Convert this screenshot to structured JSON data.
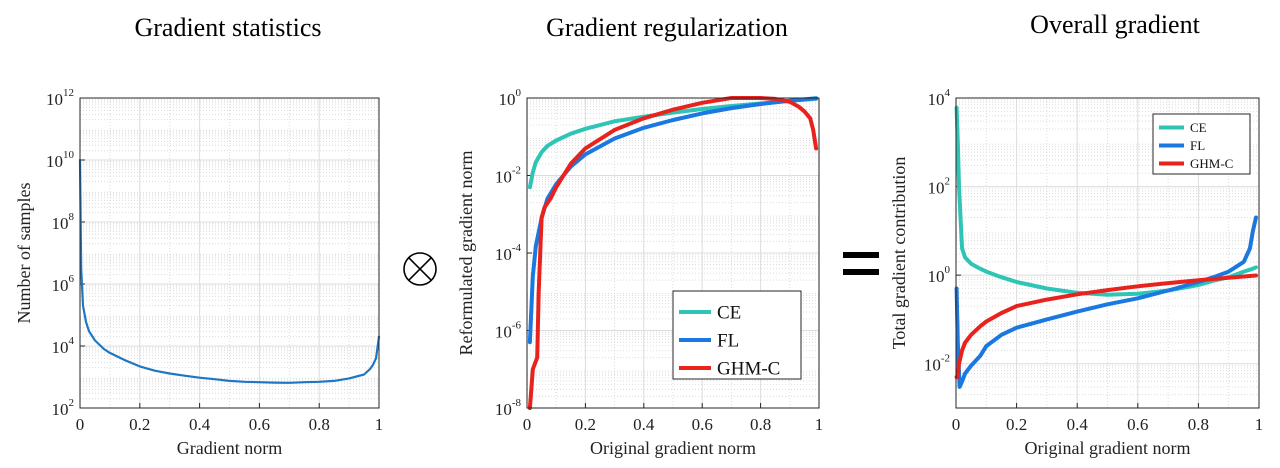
{
  "figure": {
    "titles": [
      "Gradient statistics",
      "Gradient regularization",
      "Overall gradient"
    ],
    "operator_otimes": "⊗",
    "operator_equals": "="
  },
  "chart_data": [
    {
      "type": "line",
      "title": "Gradient statistics",
      "xlabel": "Gradient norm",
      "ylabel": "Number of samples",
      "xlim": [
        0,
        1
      ],
      "ylim_log10": [
        2,
        12
      ],
      "yscale": "log",
      "grid": true,
      "xticks": [
        "0",
        "0.2",
        "0.4",
        "0.6",
        "0.8",
        "1"
      ],
      "yticks_base": "10",
      "yticks_exp": [
        "2",
        "4",
        "6",
        "8",
        "10",
        "12"
      ],
      "series": [
        {
          "color": "#1f77c4",
          "x": [
            0.0,
            0.004,
            0.01,
            0.02,
            0.03,
            0.05,
            0.08,
            0.1,
            0.15,
            0.2,
            0.25,
            0.3,
            0.35,
            0.4,
            0.45,
            0.5,
            0.55,
            0.6,
            0.65,
            0.7,
            0.75,
            0.8,
            0.85,
            0.9,
            0.95,
            0.97,
            0.98,
            0.99,
            1.0
          ],
          "y": [
            10000000000.0,
            3000000.0,
            200000.0,
            60000.0,
            30000.0,
            15000.0,
            8000.0,
            6000.0,
            3500.0,
            2200.0,
            1600.0,
            1300.0,
            1100.0,
            950,
            850,
            750,
            700,
            680,
            660,
            650,
            680,
            700,
            750,
            900,
            1200.0,
            1800.0,
            2500.0,
            4000.0,
            20000.0
          ]
        }
      ]
    },
    {
      "type": "line",
      "title": "Gradient regularization",
      "xlabel": "Original gradient norm",
      "ylabel": "Reformulated gradient norm",
      "xlim": [
        0,
        1
      ],
      "ylim_log10": [
        -8,
        0
      ],
      "yscale": "log",
      "grid": true,
      "legend_position": "bottom-right",
      "xticks": [
        "0",
        "0.2",
        "0.4",
        "0.6",
        "0.8",
        "1"
      ],
      "yticks_base": "10",
      "yticks_exp": [
        "0",
        "-2",
        "-4",
        "-6",
        "-8"
      ],
      "series": [
        {
          "name": "CE",
          "color": "#2ec4b6",
          "x": [
            0.01,
            0.02,
            0.03,
            0.05,
            0.07,
            0.1,
            0.15,
            0.2,
            0.3,
            0.4,
            0.5,
            0.6,
            0.7,
            0.8,
            0.9,
            0.99
          ],
          "y": [
            0.005,
            0.012,
            0.022,
            0.04,
            0.058,
            0.08,
            0.12,
            0.16,
            0.25,
            0.33,
            0.42,
            0.52,
            0.62,
            0.72,
            0.84,
            0.96
          ]
        },
        {
          "name": "FL",
          "color": "#1a78e0",
          "x": [
            0.01,
            0.02,
            0.03,
            0.05,
            0.07,
            0.1,
            0.15,
            0.2,
            0.3,
            0.4,
            0.5,
            0.6,
            0.7,
            0.8,
            0.9,
            0.99
          ],
          "y": [
            5e-07,
            2.5e-05,
            0.00015,
            0.0008,
            0.0025,
            0.006,
            0.017,
            0.035,
            0.09,
            0.17,
            0.27,
            0.4,
            0.55,
            0.7,
            0.85,
            0.98
          ]
        },
        {
          "name": "GHM-C",
          "color": "#e8231e",
          "x": [
            0.01,
            0.02,
            0.035,
            0.04,
            0.05,
            0.06,
            0.08,
            0.1,
            0.15,
            0.2,
            0.3,
            0.4,
            0.5,
            0.6,
            0.7,
            0.76,
            0.8,
            0.85,
            0.9,
            0.93,
            0.95,
            0.97,
            0.98,
            0.99
          ],
          "y": [
            1e-08,
            1e-07,
            2e-07,
            1e-05,
            0.0008,
            0.0015,
            0.0025,
            0.005,
            0.02,
            0.05,
            0.15,
            0.3,
            0.5,
            0.75,
            1.0,
            1.1,
            1.05,
            0.95,
            0.8,
            0.6,
            0.45,
            0.3,
            0.15,
            0.05
          ]
        }
      ]
    },
    {
      "type": "line",
      "title": "Overall gradient",
      "xlabel": "Original gradient norm",
      "ylabel": "Total gradient contribution",
      "xlim": [
        0,
        1
      ],
      "ylim_log10": [
        -3,
        4
      ],
      "yscale": "log",
      "grid": true,
      "legend_position": "top-right",
      "xticks": [
        "0",
        "0.2",
        "0.4",
        "0.6",
        "0.8",
        "1"
      ],
      "yticks_base": "10",
      "yticks_exp": [
        "4",
        "2",
        "0",
        "-2"
      ],
      "series": [
        {
          "name": "CE",
          "color": "#2ec4b6",
          "x": [
            0.002,
            0.006,
            0.01,
            0.015,
            0.02,
            0.03,
            0.05,
            0.08,
            0.1,
            0.15,
            0.2,
            0.3,
            0.4,
            0.5,
            0.6,
            0.7,
            0.8,
            0.85,
            0.9,
            0.95,
            0.98,
            0.99
          ],
          "y": [
            6000,
            1000,
            100,
            20,
            4,
            2.5,
            1.8,
            1.4,
            1.2,
            0.9,
            0.7,
            0.5,
            0.4,
            0.36,
            0.38,
            0.45,
            0.6,
            0.75,
            0.9,
            1.2,
            1.4,
            1.5
          ]
        },
        {
          "name": "FL",
          "color": "#1a78e0",
          "x": [
            0.002,
            0.006,
            0.012,
            0.02,
            0.03,
            0.05,
            0.08,
            0.1,
            0.15,
            0.2,
            0.3,
            0.4,
            0.5,
            0.6,
            0.7,
            0.8,
            0.85,
            0.9,
            0.95,
            0.97,
            0.98,
            0.99
          ],
          "y": [
            0.5,
            0.03,
            0.003,
            0.004,
            0.006,
            0.009,
            0.015,
            0.025,
            0.045,
            0.065,
            0.1,
            0.15,
            0.22,
            0.3,
            0.45,
            0.7,
            0.9,
            1.2,
            2.0,
            4.0,
            10.0,
            20.0
          ]
        },
        {
          "name": "GHM-C",
          "color": "#e8231e",
          "x": [
            0.002,
            0.005,
            0.01,
            0.02,
            0.03,
            0.05,
            0.08,
            0.1,
            0.15,
            0.2,
            0.3,
            0.4,
            0.5,
            0.6,
            0.7,
            0.8,
            0.9,
            0.95,
            0.99
          ],
          "y": [
            0.005,
            0.005,
            0.01,
            0.02,
            0.03,
            0.045,
            0.07,
            0.09,
            0.14,
            0.2,
            0.28,
            0.37,
            0.46,
            0.56,
            0.66,
            0.77,
            0.87,
            0.93,
            0.98
          ]
        }
      ]
    }
  ]
}
